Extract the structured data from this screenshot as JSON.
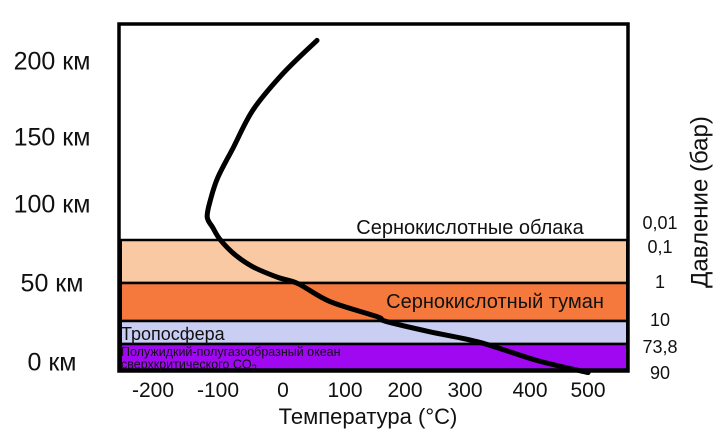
{
  "chart_data": {
    "type": "line",
    "title": "",
    "xlabel": "Температура (°C)",
    "ylabel_right": "Давление (бар)",
    "grid": false,
    "legend": "none",
    "x_ticks": [
      "-200",
      "-100",
      "0",
      "100",
      "200",
      "300",
      "400",
      "500"
    ],
    "x_tick_values": [
      -200,
      -100,
      0,
      100,
      200,
      300,
      400,
      500
    ],
    "xlim": [
      -260,
      560
    ],
    "altitude_labels": [
      "200 км",
      "150 км",
      "100 км",
      "50 км",
      "0 км"
    ],
    "altitude_values_km": [
      200,
      150,
      100,
      50,
      0
    ],
    "pressure_labels": [
      "0,01",
      "0,1",
      "1",
      "10",
      "73,8",
      "90"
    ],
    "pressure_values_bar": [
      0.01,
      0.1,
      1,
      10,
      73.8,
      90
    ],
    "bands": [
      {
        "label": "Сернокислотные облака",
        "alt_km": [
          52,
          81
        ],
        "color": "#F8C9A2"
      },
      {
        "label": "Сернокислотный туман",
        "alt_km": [
          27,
          52
        ],
        "color": "#F5793C"
      },
      {
        "label": "Тропосфера",
        "alt_km": [
          12,
          27
        ],
        "color": "#C9CEF2"
      },
      {
        "label_line1": "Полужидкий-полугазообразный океан",
        "label_line2": "сверхкритического CO",
        "label_sub": "2",
        "alt_km": [
          0,
          12
        ],
        "color": "#A008F2",
        "text_color": "#7A1E00"
      }
    ],
    "series": [
      {
        "name": "temperature_profile",
        "color": "#000000",
        "points_t_c_alt_km": [
          [
            59,
            213
          ],
          [
            4,
            191
          ],
          [
            -44,
            167
          ],
          [
            -76,
            142
          ],
          [
            -101,
            122
          ],
          [
            -113,
            107
          ],
          [
            -118,
            96
          ],
          [
            -109,
            89
          ],
          [
            -97,
            81
          ],
          [
            -73,
            71
          ],
          [
            -44,
            63
          ],
          [
            -4,
            56
          ],
          [
            28,
            52
          ],
          [
            80,
            40
          ],
          [
            156,
            30
          ],
          [
            169,
            27
          ],
          [
            241,
            20
          ],
          [
            322,
            13
          ],
          [
            414,
            1
          ],
          [
            496,
            -7
          ]
        ]
      }
    ]
  }
}
